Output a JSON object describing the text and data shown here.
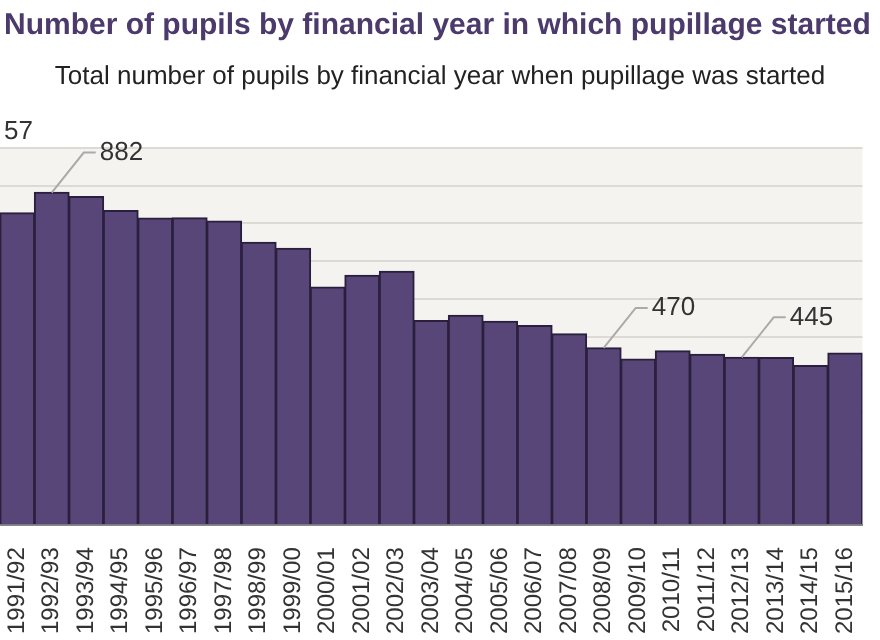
{
  "chart_data": {
    "type": "bar",
    "title": "Number of pupils by financial year in which pupillage started",
    "subtitle": "Total number of pupils by financial year when pupillage was started",
    "categories": [
      "1991/92",
      "1992/93",
      "1993/94",
      "1994/95",
      "1995/96",
      "1996/97",
      "1997/98",
      "1998/99",
      "1999/00",
      "2000/01",
      "2001/02",
      "2002/03",
      "2003/04",
      "2004/05",
      "2005/06",
      "2006/07",
      "2007/08",
      "2008/09",
      "2009/10",
      "2010/11",
      "2011/12",
      "2012/13",
      "2013/14",
      "2014/15",
      "2015/16"
    ],
    "values": [
      828,
      882,
      871,
      834,
      814,
      815,
      806,
      750,
      734,
      631,
      662,
      673,
      542,
      556,
      540,
      529,
      507,
      470,
      440,
      462,
      453,
      445,
      444,
      423,
      456
    ],
    "value_labels": [
      null,
      "882",
      null,
      null,
      null,
      null,
      null,
      null,
      null,
      null,
      null,
      null,
      null,
      null,
      null,
      null,
      null,
      "470",
      null,
      null,
      null,
      "445",
      null,
      null,
      null
    ],
    "color": "#574677",
    "annotations": [
      "57"
    ],
    "ylim": [
      0,
      1000
    ],
    "yticks": [
      0,
      100,
      200,
      300,
      400,
      500,
      600,
      700,
      800,
      900,
      1000
    ],
    "grid": "y",
    "tick_labels": "x",
    "legend": false
  }
}
